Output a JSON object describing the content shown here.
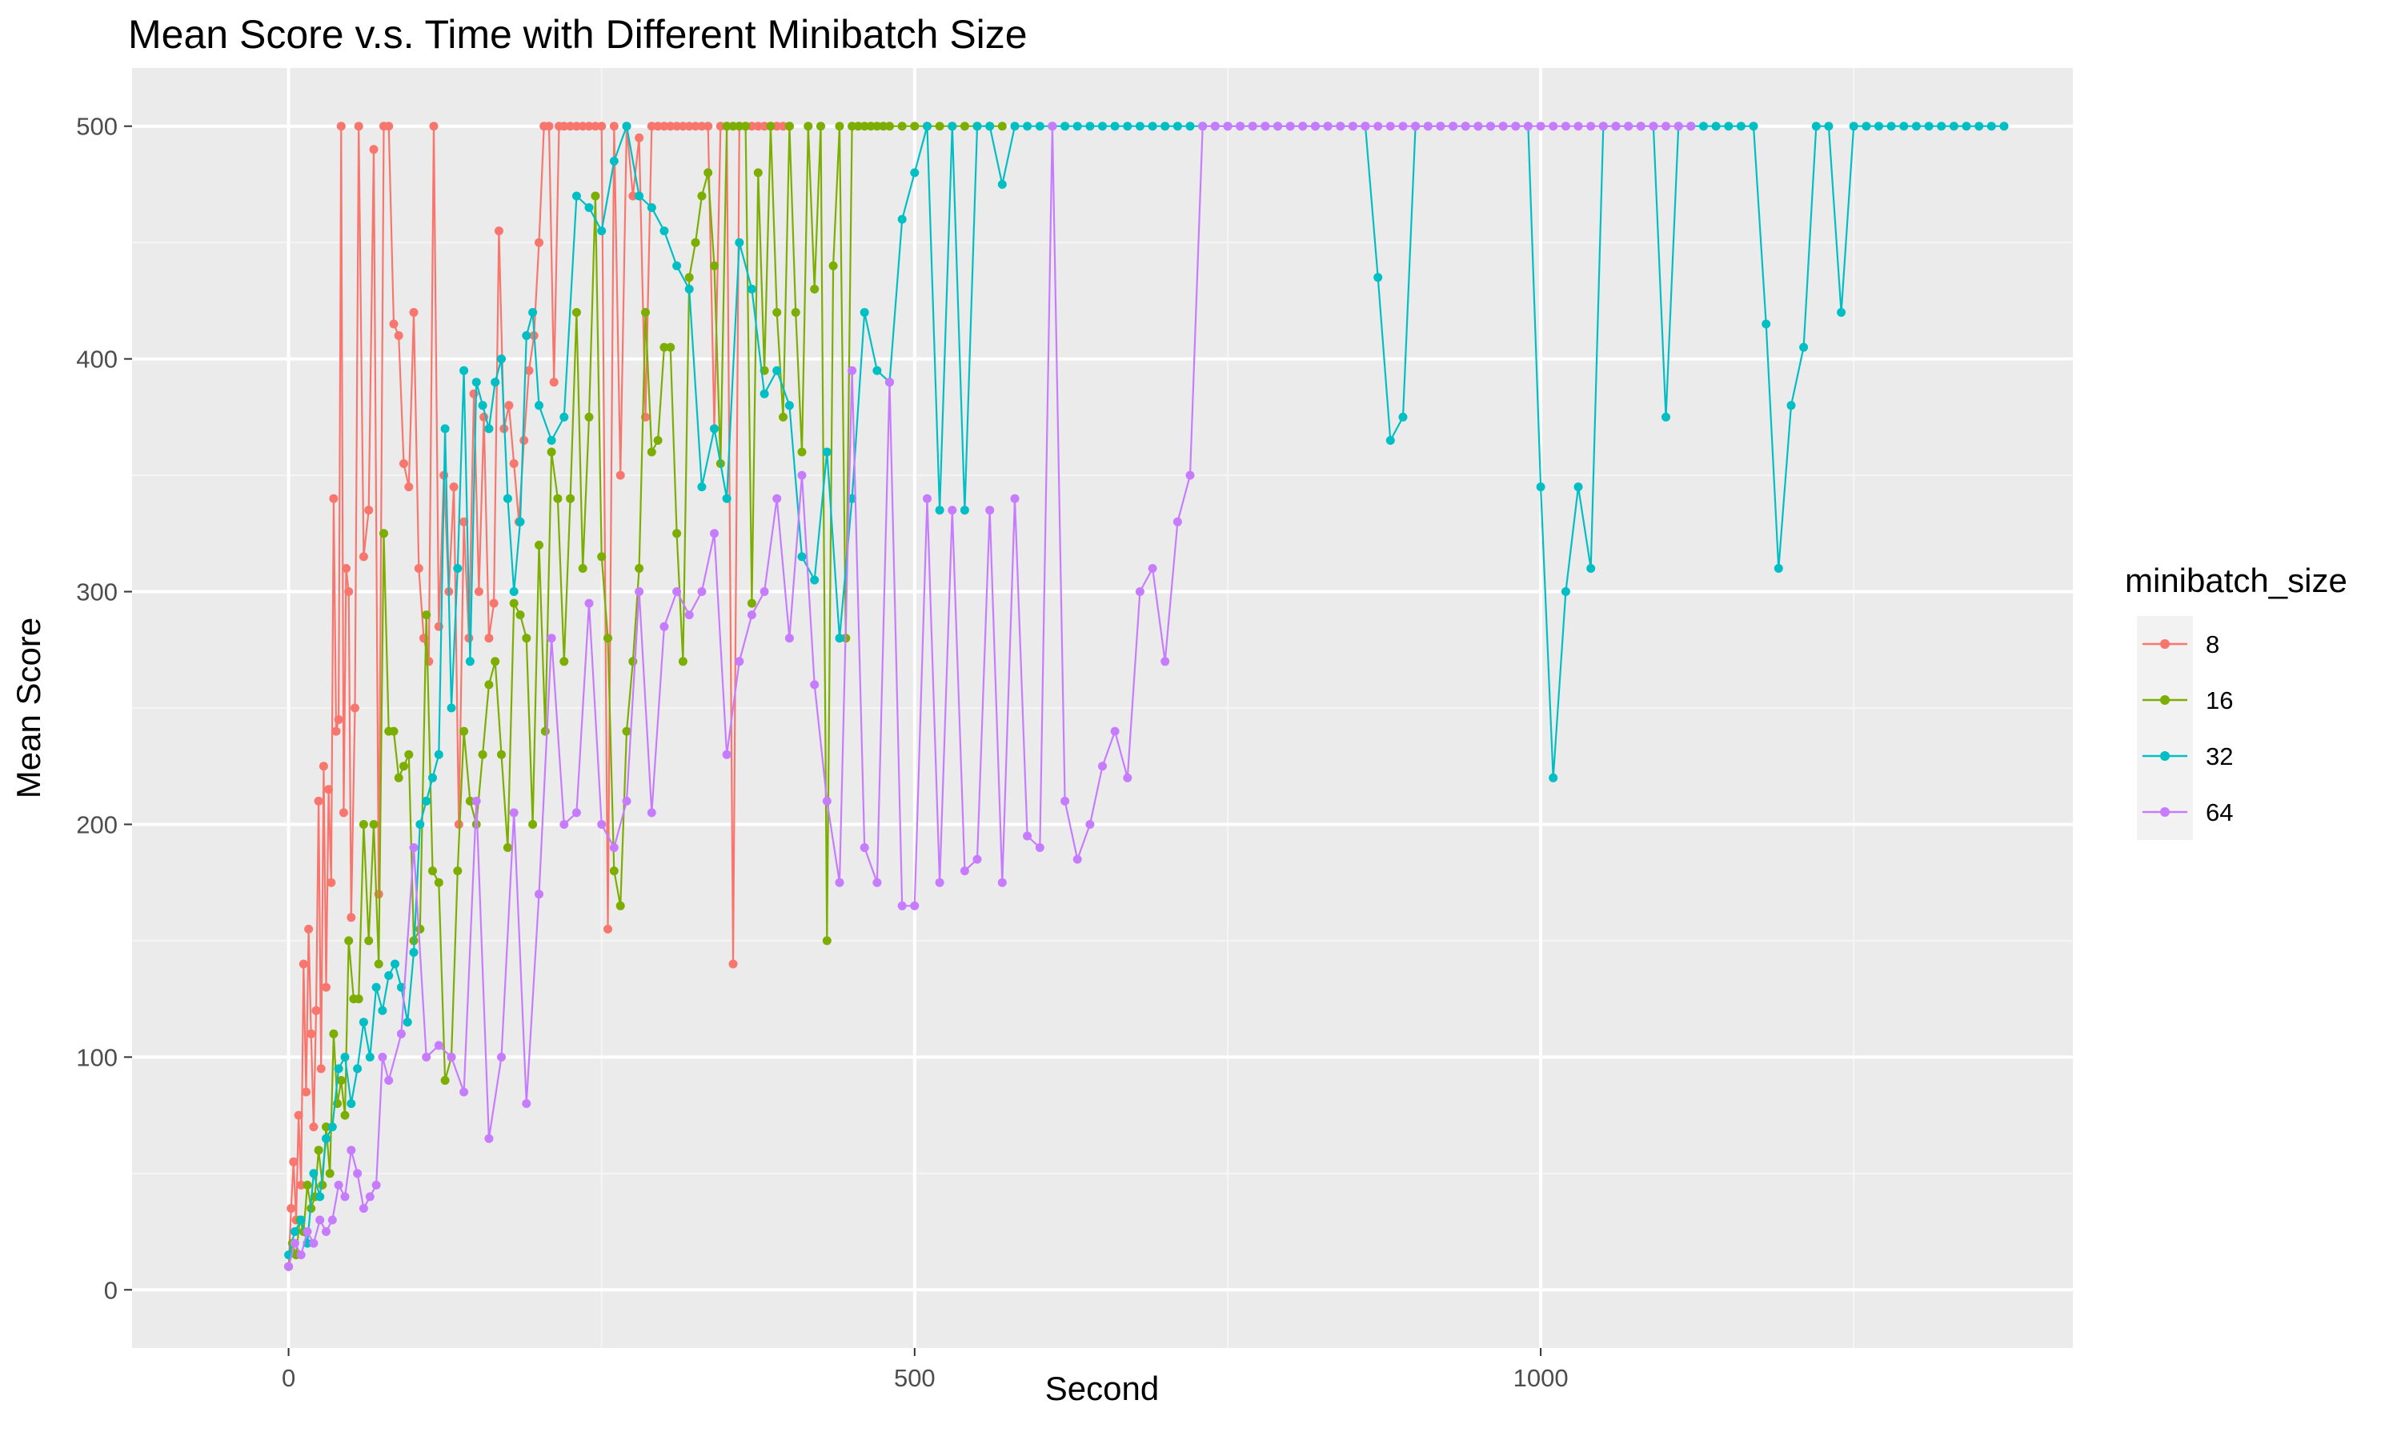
{
  "chart_data": {
    "type": "line",
    "title": "Mean Score v.s. Time with Different Minibatch Size",
    "xlabel": "Second",
    "ylabel": "Mean Score",
    "xlim": [
      -125,
      1425
    ],
    "ylim": [
      -25,
      525
    ],
    "x_ticks": [
      0,
      500,
      1000
    ],
    "y_ticks": [
      0,
      100,
      200,
      300,
      400,
      500
    ],
    "grid": true,
    "legend": {
      "title": "minibatch_size",
      "placement": "right"
    },
    "series": [
      {
        "name": "8",
        "color": "#F8766D",
        "x": [
          0,
          2,
          4,
          6,
          8,
          10,
          12,
          14,
          16,
          18,
          20,
          22,
          24,
          26,
          28,
          30,
          32,
          34,
          36,
          38,
          40,
          42,
          44,
          46,
          48,
          50,
          53,
          56,
          60,
          64,
          68,
          72,
          76,
          80,
          84,
          88,
          92,
          96,
          100,
          104,
          108,
          112,
          116,
          120,
          124,
          128,
          132,
          136,
          140,
          144,
          148,
          152,
          156,
          160,
          164,
          168,
          172,
          176,
          180,
          184,
          188,
          192,
          196,
          200,
          204,
          208,
          212,
          216,
          220,
          225,
          230,
          235,
          240,
          245,
          250,
          255,
          260,
          265,
          270,
          275,
          280,
          285,
          290,
          295,
          300,
          305,
          310,
          315,
          320,
          325,
          330,
          335,
          340,
          345,
          350,
          355,
          360,
          365,
          370,
          375,
          380,
          385,
          390,
          395,
          400
        ],
        "y": [
          10,
          35,
          55,
          30,
          75,
          45,
          140,
          85,
          155,
          110,
          70,
          120,
          210,
          95,
          225,
          130,
          215,
          175,
          340,
          240,
          245,
          500,
          205,
          310,
          300,
          160,
          250,
          500,
          315,
          335,
          490,
          170,
          500,
          500,
          415,
          410,
          355,
          345,
          420,
          310,
          280,
          270,
          500,
          285,
          350,
          300,
          345,
          200,
          330,
          280,
          385,
          300,
          375,
          280,
          295,
          455,
          370,
          380,
          355,
          330,
          365,
          395,
          410,
          450,
          500,
          500,
          390,
          500,
          500,
          500,
          500,
          500,
          500,
          500,
          500,
          155,
          500,
          350,
          500,
          470,
          495,
          375,
          500,
          500,
          500,
          500,
          500,
          500,
          500,
          500,
          500,
          500,
          370,
          500,
          500,
          140,
          500,
          500,
          500,
          500,
          500,
          500,
          500,
          500,
          500
        ]
      },
      {
        "name": "16",
        "color": "#7CAE00",
        "x": [
          0,
          3,
          6,
          9,
          12,
          15,
          18,
          21,
          24,
          27,
          30,
          33,
          36,
          39,
          42,
          45,
          48,
          52,
          56,
          60,
          64,
          68,
          72,
          76,
          80,
          84,
          88,
          92,
          96,
          100,
          105,
          110,
          115,
          120,
          125,
          130,
          135,
          140,
          145,
          150,
          155,
          160,
          165,
          170,
          175,
          180,
          185,
          190,
          195,
          200,
          205,
          210,
          215,
          220,
          225,
          230,
          235,
          240,
          245,
          250,
          255,
          260,
          265,
          270,
          275,
          280,
          285,
          290,
          295,
          300,
          305,
          310,
          315,
          320,
          325,
          330,
          335,
          340,
          345,
          350,
          355,
          360,
          365,
          370,
          375,
          380,
          385,
          390,
          395,
          400,
          405,
          410,
          415,
          420,
          425,
          430,
          435,
          440,
          445,
          450,
          455,
          460,
          465,
          470,
          475,
          480,
          490,
          500,
          510,
          520,
          530,
          540,
          550,
          560,
          570
        ],
        "y": [
          10,
          20,
          15,
          30,
          25,
          45,
          35,
          40,
          60,
          45,
          70,
          50,
          110,
          80,
          90,
          75,
          150,
          125,
          125,
          200,
          150,
          200,
          140,
          325,
          240,
          240,
          220,
          225,
          230,
          150,
          155,
          290,
          180,
          175,
          90,
          100,
          180,
          240,
          210,
          200,
          230,
          260,
          270,
          230,
          190,
          295,
          290,
          280,
          200,
          320,
          240,
          360,
          340,
          270,
          340,
          420,
          310,
          375,
          470,
          315,
          280,
          180,
          165,
          240,
          270,
          310,
          420,
          360,
          365,
          405,
          405,
          325,
          270,
          435,
          450,
          470,
          480,
          440,
          355,
          500,
          500,
          500,
          500,
          295,
          480,
          395,
          500,
          420,
          375,
          500,
          420,
          360,
          500,
          430,
          500,
          150,
          440,
          500,
          280,
          500,
          500,
          500,
          500,
          500,
          500,
          500,
          500,
          500,
          500,
          500,
          500,
          500,
          500,
          500,
          500
        ]
      },
      {
        "name": "32",
        "color": "#00BFC4",
        "x": [
          0,
          5,
          10,
          15,
          20,
          25,
          30,
          35,
          40,
          45,
          50,
          55,
          60,
          65,
          70,
          75,
          80,
          85,
          90,
          95,
          100,
          105,
          110,
          115,
          120,
          125,
          130,
          135,
          140,
          145,
          150,
          155,
          160,
          165,
          170,
          175,
          180,
          185,
          190,
          195,
          200,
          210,
          220,
          230,
          240,
          250,
          260,
          270,
          280,
          290,
          300,
          310,
          320,
          330,
          340,
          350,
          360,
          370,
          380,
          390,
          400,
          410,
          420,
          430,
          440,
          450,
          460,
          470,
          480,
          490,
          500,
          510,
          520,
          530,
          540,
          550,
          560,
          570,
          580,
          590,
          600,
          610,
          620,
          630,
          640,
          650,
          660,
          670,
          680,
          690,
          700,
          710,
          720,
          730,
          740,
          750,
          760,
          770,
          780,
          790,
          800,
          810,
          820,
          830,
          840,
          850,
          860,
          870,
          880,
          890,
          900,
          910,
          920,
          930,
          940,
          950,
          960,
          970,
          980,
          990,
          1000,
          1010,
          1020,
          1030,
          1040,
          1050,
          1060,
          1070,
          1080,
          1090,
          1100,
          1110,
          1120,
          1130,
          1140,
          1150,
          1160,
          1170,
          1180,
          1190,
          1200,
          1210,
          1220,
          1230,
          1240,
          1250,
          1260,
          1270,
          1280,
          1290,
          1300,
          1310,
          1320,
          1330,
          1340,
          1350,
          1360,
          1370
        ],
        "y": [
          15,
          25,
          30,
          20,
          50,
          40,
          65,
          70,
          95,
          100,
          80,
          95,
          115,
          100,
          130,
          120,
          135,
          140,
          130,
          115,
          145,
          200,
          210,
          220,
          230,
          370,
          250,
          310,
          395,
          270,
          390,
          380,
          370,
          390,
          400,
          340,
          300,
          330,
          410,
          420,
          380,
          365,
          375,
          470,
          465,
          455,
          485,
          500,
          470,
          465,
          455,
          440,
          430,
          345,
          370,
          340,
          450,
          430,
          385,
          395,
          380,
          315,
          305,
          360,
          280,
          340,
          420,
          395,
          390,
          460,
          480,
          500,
          335,
          500,
          335,
          500,
          500,
          475,
          500,
          500,
          500,
          500,
          500,
          500,
          500,
          500,
          500,
          500,
          500,
          500,
          500,
          500,
          500,
          500,
          500,
          500,
          500,
          500,
          500,
          500,
          500,
          500,
          500,
          500,
          500,
          500,
          500,
          435,
          365,
          375,
          500,
          500,
          500,
          500,
          500,
          500,
          500,
          500,
          500,
          500,
          345,
          220,
          300,
          345,
          310,
          500,
          500,
          500,
          500,
          500,
          375,
          500,
          500,
          500,
          500,
          500,
          500,
          500,
          415,
          310,
          380,
          405,
          500,
          500,
          420,
          500,
          500,
          500,
          500,
          500,
          500,
          500,
          500,
          500,
          500,
          500,
          500,
          500
        ]
      },
      {
        "name": "64",
        "color": "#C77CFF",
        "x": [
          0,
          5,
          10,
          15,
          20,
          25,
          30,
          35,
          40,
          45,
          50,
          55,
          60,
          65,
          70,
          75,
          80,
          90,
          100,
          110,
          120,
          130,
          140,
          150,
          160,
          170,
          180,
          190,
          200,
          210,
          220,
          230,
          240,
          250,
          260,
          270,
          280,
          290,
          300,
          310,
          320,
          330,
          340,
          350,
          360,
          370,
          380,
          390,
          400,
          410,
          420,
          430,
          440,
          450,
          460,
          470,
          480,
          490,
          500,
          510,
          520,
          530,
          540,
          550,
          560,
          570,
          580,
          590,
          600,
          610,
          620,
          630,
          640,
          650,
          660,
          670,
          680,
          690,
          700,
          710,
          720,
          730,
          740,
          750,
          760,
          770,
          780,
          790,
          800,
          810,
          820,
          830,
          840,
          850,
          860,
          870,
          880,
          890,
          900,
          910,
          920,
          930,
          940,
          950,
          960,
          970,
          980,
          990,
          1000,
          1010,
          1020,
          1030,
          1040,
          1050,
          1060,
          1070,
          1080,
          1090,
          1100,
          1110,
          1120
        ],
        "y": [
          10,
          20,
          15,
          25,
          20,
          30,
          25,
          30,
          45,
          40,
          60,
          50,
          35,
          40,
          45,
          100,
          90,
          110,
          190,
          100,
          105,
          100,
          85,
          210,
          65,
          100,
          205,
          80,
          170,
          280,
          200,
          205,
          295,
          200,
          190,
          210,
          300,
          205,
          285,
          300,
          290,
          300,
          325,
          230,
          270,
          290,
          300,
          340,
          280,
          350,
          260,
          210,
          175,
          395,
          190,
          175,
          390,
          165,
          165,
          340,
          175,
          335,
          180,
          185,
          335,
          175,
          340,
          195,
          190,
          500,
          210,
          185,
          200,
          225,
          240,
          220,
          300,
          310,
          270,
          330,
          350,
          500,
          500,
          500,
          500,
          500,
          500,
          500,
          500,
          500,
          500,
          500,
          500,
          500,
          500,
          500,
          500,
          500,
          500,
          500,
          500,
          500,
          500,
          500,
          500,
          500,
          500,
          500,
          500,
          500,
          500,
          500,
          500,
          500,
          500,
          500,
          500,
          500,
          500,
          500,
          500
        ]
      }
    ]
  }
}
